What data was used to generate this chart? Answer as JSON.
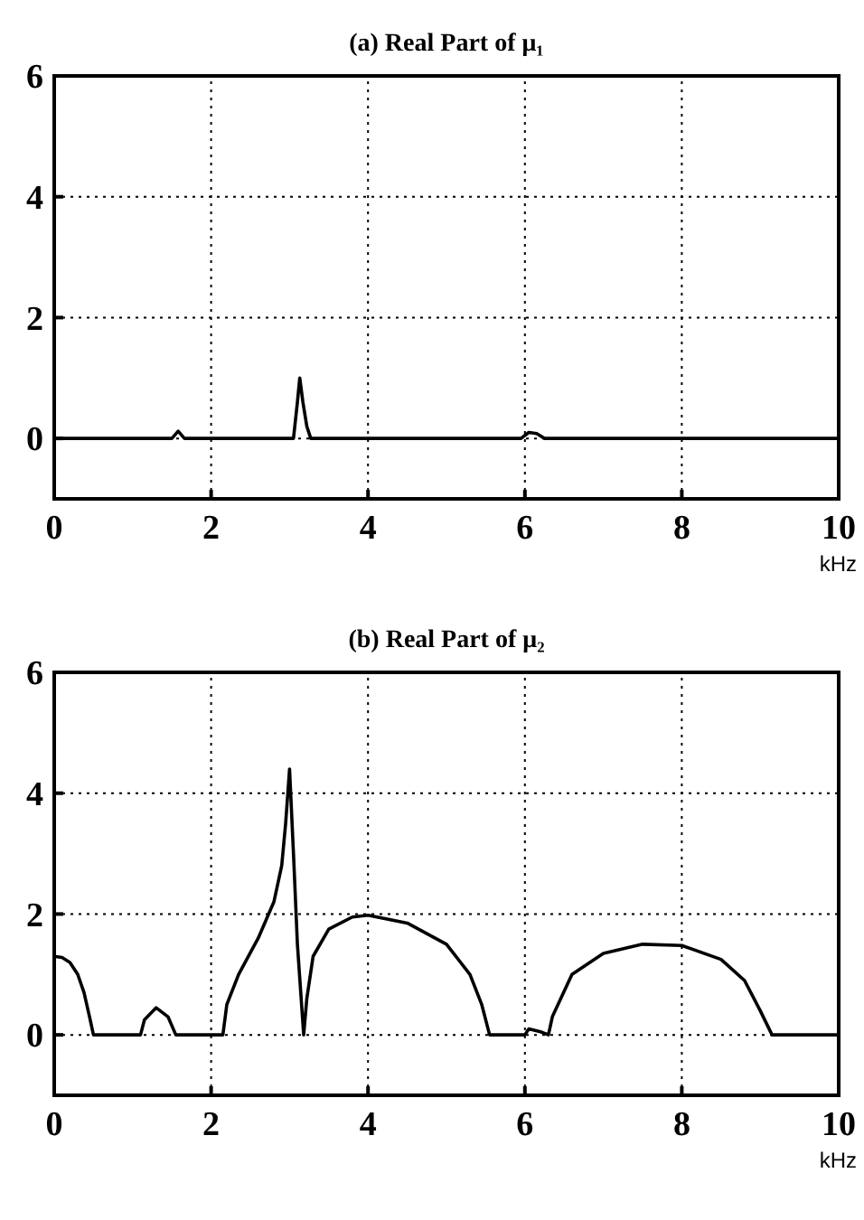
{
  "chart_data": [
    {
      "type": "line",
      "title": "(a) Real Part of μ₁",
      "xlabel": "kHz",
      "xlim": [
        0,
        10
      ],
      "xticks": [
        0,
        2,
        4,
        6,
        8,
        10
      ],
      "ylim": [
        -1,
        6
      ],
      "yticks": [
        0,
        2,
        4,
        6
      ],
      "grid": true,
      "line_style": "solid",
      "series": [
        {
          "color": "#000000",
          "x": [
            0,
            1.5,
            1.58,
            1.66,
            3.05,
            3.1,
            3.13,
            3.17,
            3.22,
            3.27,
            5.95,
            6.05,
            6.15,
            6.25,
            10
          ],
          "values": [
            0,
            0,
            0.12,
            0,
            0,
            0.6,
            1.0,
            0.6,
            0.2,
            0,
            0,
            0.1,
            0.08,
            0,
            0
          ]
        }
      ]
    },
    {
      "type": "line",
      "title": "(b) Real Part of μ₂",
      "xlabel": "kHz",
      "xlim": [
        0,
        10
      ],
      "xticks": [
        0,
        2,
        4,
        6,
        8,
        10
      ],
      "ylim": [
        -1,
        6
      ],
      "yticks": [
        0,
        2,
        4,
        6
      ],
      "grid": true,
      "line_style": "solid",
      "series": [
        {
          "color": "#000000",
          "x": [
            0,
            0.1,
            0.2,
            0.3,
            0.38,
            0.45,
            0.5,
            1.1,
            1.15,
            1.3,
            1.45,
            1.55,
            2.15,
            2.2,
            2.35,
            2.6,
            2.8,
            2.9,
            2.95,
            3.0,
            3.05,
            3.1,
            3.18,
            3.22,
            3.3,
            3.5,
            3.8,
            4.0,
            4.5,
            5.0,
            5.3,
            5.45,
            5.55,
            6.0,
            6.05,
            6.2,
            6.3,
            6.35,
            6.6,
            7.0,
            7.5,
            8.0,
            8.5,
            8.8,
            9.0,
            9.15,
            10
          ],
          "values": [
            1.3,
            1.28,
            1.2,
            1.0,
            0.7,
            0.3,
            0,
            0,
            0.25,
            0.45,
            0.3,
            0,
            0,
            0.5,
            1.0,
            1.6,
            2.2,
            2.8,
            3.5,
            4.4,
            3.0,
            1.5,
            0,
            0.6,
            1.3,
            1.75,
            1.95,
            1.98,
            1.85,
            1.5,
            1.0,
            0.5,
            0,
            0,
            0.1,
            0.05,
            0,
            0.3,
            1.0,
            1.35,
            1.5,
            1.48,
            1.25,
            0.9,
            0.4,
            0,
            0
          ]
        }
      ]
    }
  ]
}
